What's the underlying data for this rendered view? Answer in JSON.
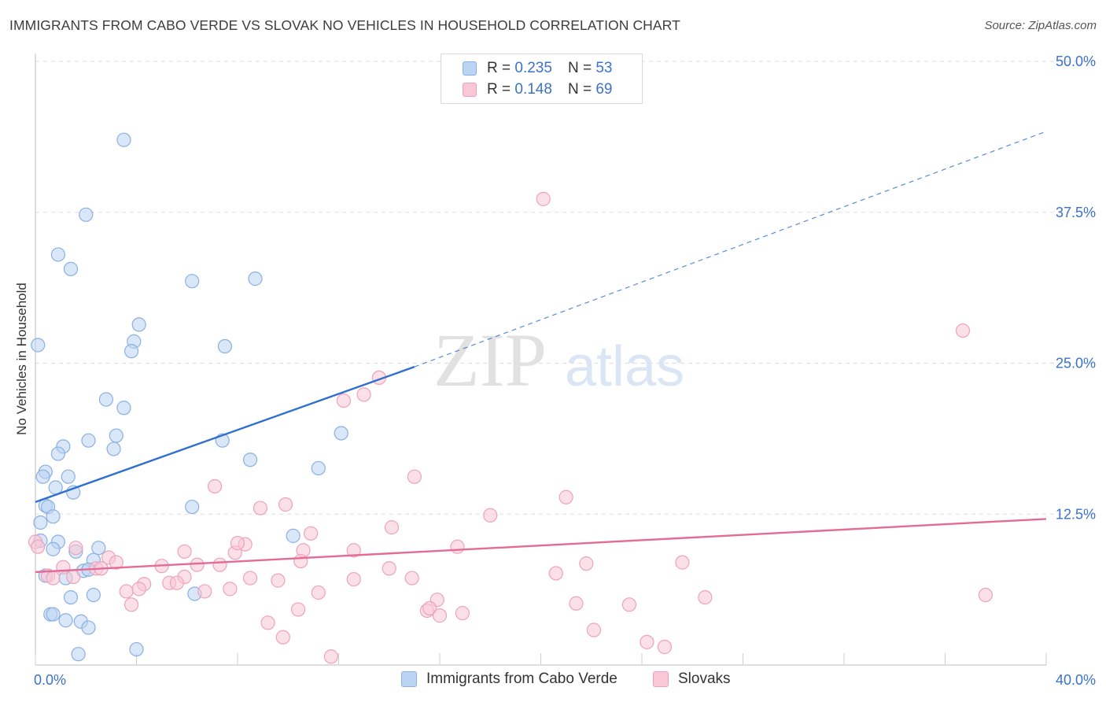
{
  "title": "IMMIGRANTS FROM CABO VERDE VS SLOVAK NO VEHICLES IN HOUSEHOLD CORRELATION CHART",
  "source": "Source: ZipAtlas.com",
  "watermark": {
    "zip": "ZIP",
    "atlas": "atlas"
  },
  "legend_top": [
    {
      "r_label": "R =",
      "r_value": "0.235",
      "n_label": "N =",
      "n_value": "53"
    },
    {
      "r_label": "R =",
      "r_value": "0.148",
      "n_label": "N =",
      "n_value": "69"
    }
  ],
  "legend_bottom": [
    {
      "label": "Immigrants from Cabo Verde"
    },
    {
      "label": "Slovaks"
    }
  ],
  "colors": {
    "blue_fill": "#bcd4f3",
    "blue_stroke": "#8ab0e3",
    "blue_line": "#2f6fd0",
    "pink_fill": "#f9c7d6",
    "pink_stroke": "#eea2b9",
    "pink_line": "#e46b96",
    "axis_text": "#3b73c8",
    "grid": "#dddddd"
  },
  "chart_data": {
    "type": "scatter",
    "xlabel": "",
    "ylabel": "No Vehicles in Household",
    "xlim": [
      0,
      40
    ],
    "ylim": [
      0,
      50
    ],
    "x_tick_labels": [
      "0.0%",
      "40.0%"
    ],
    "y_ticks": [
      12.5,
      25.0,
      37.5,
      50.0
    ],
    "y_tick_labels": [
      "12.5%",
      "25.0%",
      "37.5%",
      "50.0%"
    ],
    "grid": true,
    "legend_placement": "top-center",
    "series": [
      {
        "name": "Immigrants from Cabo Verde",
        "r": 0.235,
        "n": 53,
        "trend": {
          "x0": 0,
          "y0": 13.5,
          "x1": 15,
          "y1": 24.7,
          "dashed_to_x": 40,
          "dashed_to_y": 44.2
        },
        "points": [
          [
            3.5,
            43.5
          ],
          [
            2.0,
            37.3
          ],
          [
            0.9,
            34.0
          ],
          [
            1.4,
            32.8
          ],
          [
            6.2,
            31.8
          ],
          [
            8.7,
            32.0
          ],
          [
            4.1,
            28.2
          ],
          [
            0.1,
            26.5
          ],
          [
            3.9,
            26.8
          ],
          [
            3.8,
            26.0
          ],
          [
            7.5,
            26.4
          ],
          [
            2.8,
            22.0
          ],
          [
            3.5,
            21.3
          ],
          [
            12.1,
            19.2
          ],
          [
            3.2,
            19.0
          ],
          [
            2.1,
            18.6
          ],
          [
            7.4,
            18.6
          ],
          [
            1.1,
            18.1
          ],
          [
            3.1,
            17.9
          ],
          [
            0.9,
            17.5
          ],
          [
            8.5,
            17.0
          ],
          [
            11.2,
            16.3
          ],
          [
            0.4,
            16.0
          ],
          [
            0.3,
            15.6
          ],
          [
            1.3,
            15.6
          ],
          [
            0.8,
            14.7
          ],
          [
            1.5,
            14.3
          ],
          [
            0.4,
            13.2
          ],
          [
            0.5,
            13.1
          ],
          [
            6.2,
            13.1
          ],
          [
            0.7,
            12.3
          ],
          [
            0.2,
            11.8
          ],
          [
            10.2,
            10.7
          ],
          [
            0.2,
            10.3
          ],
          [
            0.9,
            10.2
          ],
          [
            0.7,
            9.6
          ],
          [
            2.5,
            9.7
          ],
          [
            1.6,
            9.4
          ],
          [
            2.3,
            8.7
          ],
          [
            1.9,
            7.8
          ],
          [
            2.1,
            7.9
          ],
          [
            0.4,
            7.4
          ],
          [
            1.2,
            7.2
          ],
          [
            1.4,
            5.6
          ],
          [
            2.3,
            5.8
          ],
          [
            6.3,
            5.9
          ],
          [
            0.6,
            4.2
          ],
          [
            0.7,
            4.2
          ],
          [
            1.2,
            3.7
          ],
          [
            1.8,
            3.6
          ],
          [
            2.1,
            3.1
          ],
          [
            4.0,
            1.3
          ],
          [
            1.7,
            0.9
          ]
        ]
      },
      {
        "name": "Slovaks",
        "r": 0.148,
        "n": 69,
        "trend": {
          "x0": 0,
          "y0": 7.7,
          "x1": 40,
          "y1": 12.1
        },
        "points": [
          [
            20.1,
            38.6
          ],
          [
            36.7,
            27.7
          ],
          [
            13.6,
            23.8
          ],
          [
            13.0,
            22.4
          ],
          [
            12.2,
            21.9
          ],
          [
            15.0,
            15.6
          ],
          [
            7.1,
            14.8
          ],
          [
            21.0,
            13.9
          ],
          [
            9.9,
            13.3
          ],
          [
            8.9,
            13.0
          ],
          [
            18.0,
            12.4
          ],
          [
            14.1,
            11.4
          ],
          [
            10.9,
            10.9
          ],
          [
            8.3,
            10.0
          ],
          [
            16.7,
            9.8
          ],
          [
            1.6,
            9.7
          ],
          [
            5.9,
            9.4
          ],
          [
            7.9,
            9.3
          ],
          [
            10.6,
            9.5
          ],
          [
            12.6,
            9.5
          ],
          [
            2.9,
            8.9
          ],
          [
            10.5,
            8.6
          ],
          [
            3.2,
            8.5
          ],
          [
            21.8,
            8.4
          ],
          [
            25.6,
            8.5
          ],
          [
            6.4,
            8.3
          ],
          [
            7.3,
            8.3
          ],
          [
            5.0,
            8.2
          ],
          [
            1.1,
            8.1
          ],
          [
            14.0,
            8.0
          ],
          [
            2.4,
            8.0
          ],
          [
            2.6,
            8.0
          ],
          [
            20.6,
            7.6
          ],
          [
            0.5,
            7.4
          ],
          [
            0.7,
            7.2
          ],
          [
            1.5,
            7.3
          ],
          [
            8.5,
            7.2
          ],
          [
            9.6,
            7.0
          ],
          [
            12.6,
            7.1
          ],
          [
            14.9,
            7.2
          ],
          [
            5.9,
            7.3
          ],
          [
            4.3,
            6.7
          ],
          [
            5.3,
            6.8
          ],
          [
            5.6,
            6.8
          ],
          [
            3.6,
            6.1
          ],
          [
            4.1,
            6.3
          ],
          [
            7.7,
            6.3
          ],
          [
            6.7,
            6.1
          ],
          [
            11.2,
            6.0
          ],
          [
            15.9,
            5.4
          ],
          [
            26.5,
            5.6
          ],
          [
            37.6,
            5.8
          ],
          [
            3.8,
            5.0
          ],
          [
            21.4,
            5.1
          ],
          [
            23.5,
            5.0
          ],
          [
            10.4,
            4.6
          ],
          [
            15.5,
            4.5
          ],
          [
            15.6,
            4.7
          ],
          [
            16.0,
            4.1
          ],
          [
            16.9,
            4.3
          ],
          [
            9.2,
            3.5
          ],
          [
            22.1,
            2.9
          ],
          [
            9.8,
            2.3
          ],
          [
            24.9,
            1.5
          ],
          [
            24.2,
            1.9
          ],
          [
            11.7,
            0.7
          ],
          [
            0.0,
            10.2
          ],
          [
            0.1,
            9.8
          ],
          [
            8.0,
            10.1
          ]
        ]
      }
    ]
  }
}
